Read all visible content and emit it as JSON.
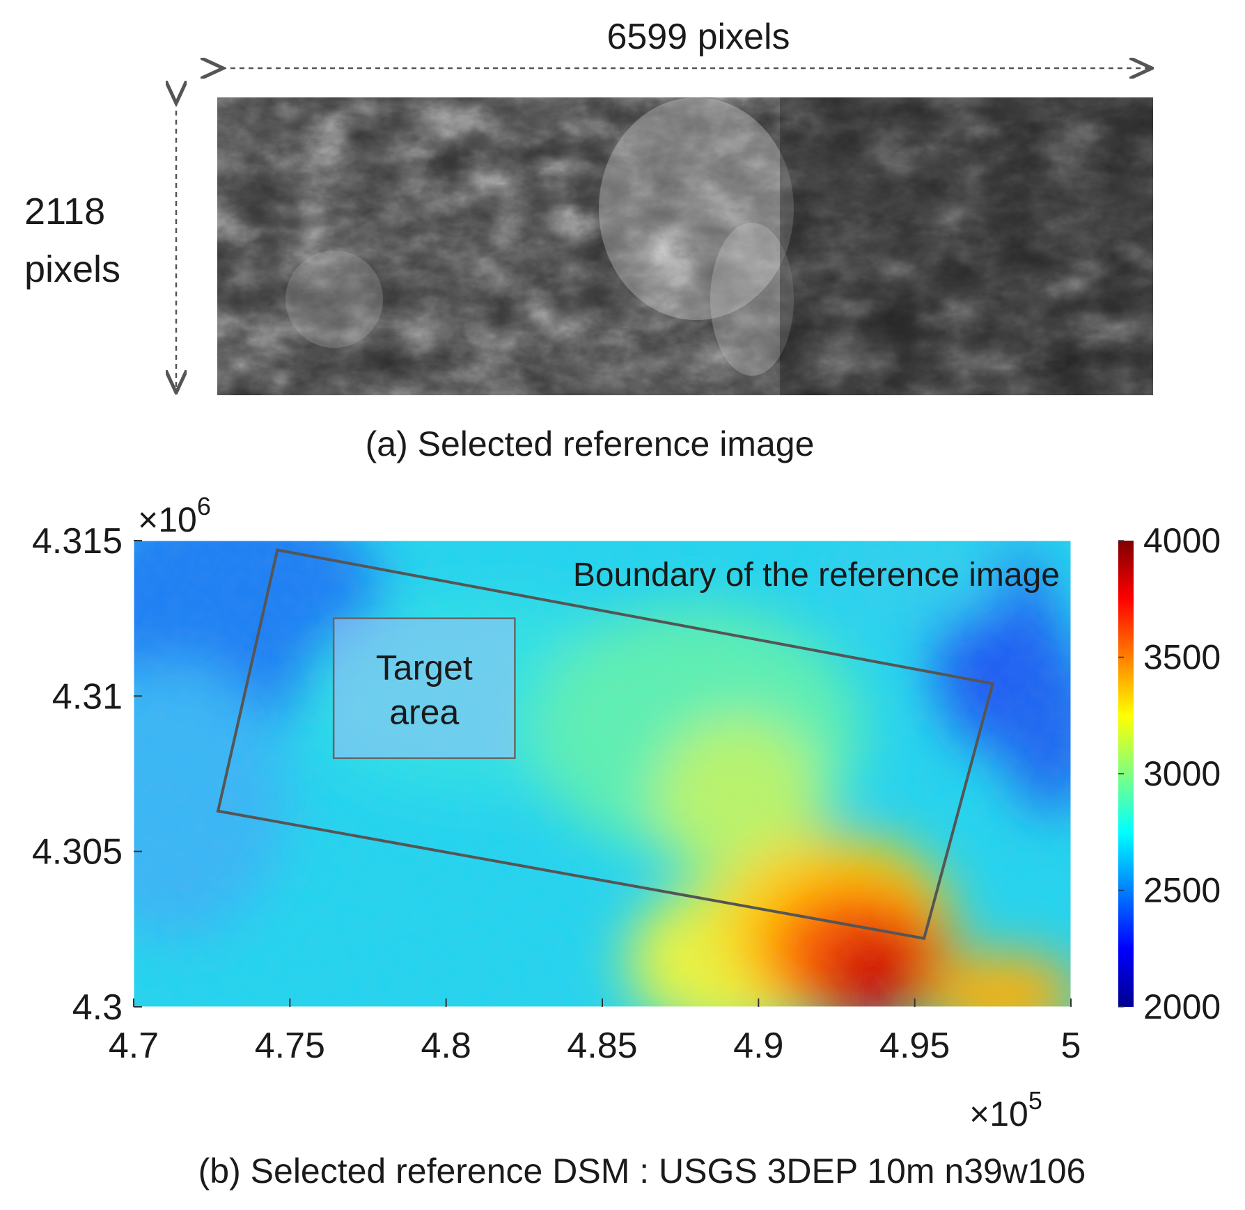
{
  "panel_a": {
    "width_label": "6599 pixels",
    "height_label_line1": "2118",
    "height_label_line2": "pixels",
    "caption": "(a) Selected reference image"
  },
  "panel_b": {
    "caption": "(b) Selected reference DSM : USGS 3DEP 10m n39w106",
    "boundary_label": "Boundary of the reference image",
    "target_label_line1": "Target",
    "target_label_line2": "area",
    "x_multiplier_base": "×10",
    "x_multiplier_exp": "5",
    "y_multiplier_base": "×10",
    "y_multiplier_exp": "6"
  },
  "chart_data": {
    "type": "heatmap",
    "xlim": [
      4.7,
      5.0
    ],
    "ylim": [
      4.3,
      4.315
    ],
    "x_ticks": [
      "4.7",
      "4.75",
      "4.8",
      "4.85",
      "4.9",
      "4.95",
      "5"
    ],
    "x_tick_values": [
      4.7,
      4.75,
      4.8,
      4.85,
      4.9,
      4.95,
      5.0
    ],
    "y_ticks": [
      "4.3",
      "4.305",
      "4.31",
      "4.315"
    ],
    "y_tick_values": [
      4.3,
      4.305,
      4.31,
      4.315
    ],
    "colorbar": {
      "range": [
        2000,
        4000
      ],
      "ticks": [
        "2000",
        "2500",
        "3000",
        "3500",
        "4000"
      ],
      "tick_values": [
        2000,
        2500,
        3000,
        3500,
        4000
      ],
      "colormap": "jet"
    },
    "boundary_polygon": [
      {
        "x": 4.746,
        "y": 4.3147
      },
      {
        "x": 4.975,
        "y": 4.3104
      },
      {
        "x": 4.953,
        "y": 4.3022
      },
      {
        "x": 4.727,
        "y": 4.3063
      }
    ],
    "target_area": {
      "x0": 4.764,
      "x1": 4.822,
      "y0": 4.308,
      "y1": 4.3125
    },
    "elevation_features": [
      {
        "desc": "peak",
        "x": 4.935,
        "y": 4.3005,
        "value": 4000
      },
      {
        "desc": "ridge",
        "x": 4.955,
        "y": 4.302,
        "value": 3700
      },
      {
        "desc": "valley",
        "x": 4.995,
        "y": 4.3095,
        "value": 2300
      },
      {
        "desc": "valley",
        "x": 4.715,
        "y": 4.3125,
        "value": 2350
      }
    ]
  }
}
